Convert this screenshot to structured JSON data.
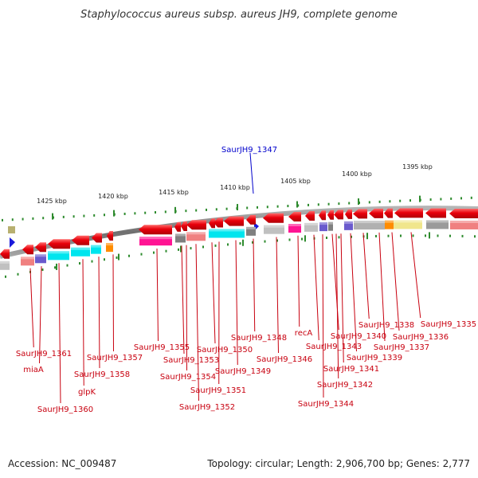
{
  "title": "Staphylococcus aureus subsp. aureus JH9, complete genome",
  "footer": {
    "accession": "Accession: NC_009487",
    "summary": "Topology: circular; Length: 2,906,700 bp; Genes: 2,777"
  },
  "colors": {
    "forward_gene": "#e8000b",
    "backbone": "#8a8a8a",
    "scale_tick": "#2e8b2e",
    "gene_label": "#c8000f",
    "highlight_label": "#0000cc",
    "marker": "#1a1adb"
  },
  "scale_labels": [
    "1425 kbp",
    "1420 kbp",
    "1415 kbp",
    "1410 kbp",
    "1405 kbp",
    "1400 kbp",
    "1395 kbp"
  ],
  "highlight_gene": "SaurJH9_1347",
  "gene_labels": [
    "SaurJH9_1361",
    "miaA",
    "SaurJH9_1360",
    "glpK",
    "SaurJH9_1358",
    "SaurJH9_1357",
    "SaurJH9_1355",
    "SaurJH9_1353",
    "SaurJH9_1354",
    "SaurJH9_1352",
    "SaurJH9_1350",
    "SaurJH9_1351",
    "SaurJH9_1349",
    "SaurJH9_1348",
    "SaurJH9_1346",
    "recA",
    "SaurJH9_1343",
    "SaurJH9_1344",
    "SaurJH9_1340",
    "SaurJH9_1342",
    "SaurJH9_1341",
    "SaurJH9_1339",
    "SaurJH9_1338",
    "SaurJH9_1337",
    "SaurJH9_1336",
    "SaurJH9_1335"
  ],
  "cog_colors": [
    "#c0c0c0",
    "#f08080",
    "#6a5acd",
    "#00e5ee",
    "#ff1493",
    "#ff8c00",
    "#f0e68c",
    "#808080",
    "#b0b0b0",
    "#9a9a9a"
  ]
}
